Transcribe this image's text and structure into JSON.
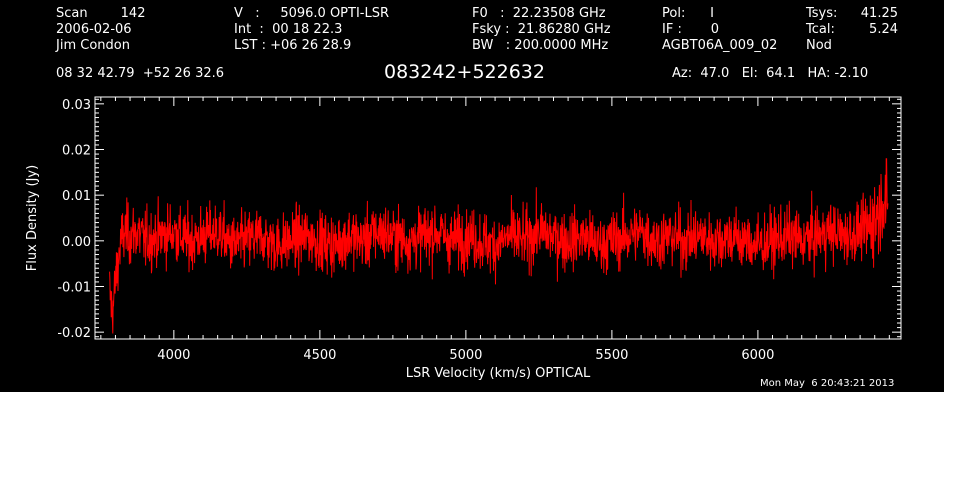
{
  "header": {
    "col1": [
      "Scan        142",
      "2006-02-06",
      "Jim Condon"
    ],
    "col2": [
      "V   :     5096.0 OPTI-LSR",
      "Int  :  00 18 22.3",
      "LST : +06 26 28.9"
    ],
    "col3": [
      "F0   :  22.23508 GHz",
      "Fsky :  21.86280 GHz",
      "BW   : 200.0000 MHz"
    ],
    "col4": [
      "Pol:      I",
      "IF :       0",
      "AGBT06A_009_02"
    ],
    "col5_labels": [
      "Tsys:",
      "Tcal:",
      "Nod"
    ],
    "col5_values": [
      "41.25",
      "5.24",
      ""
    ],
    "coords": "08 32 42.79  +52 26 32.6",
    "source": "083242+522632",
    "azelha": "Az:  47.0   El:  64.1   HA: -2.10"
  },
  "timestamp": "Mon May  6 20:43:21 2013",
  "colors": {
    "background": "#000000",
    "axes": "#ffffff",
    "series": "#ff0000"
  },
  "chart_data": {
    "type": "line",
    "title": "",
    "xlabel": "LSR Velocity (km/s) OPTICAL",
    "ylabel": "Flux Density (Jy)",
    "xlim": [
      3730,
      6490
    ],
    "ylim": [
      -0.0215,
      0.0315
    ],
    "xticks": [
      4000,
      4500,
      5000,
      5500,
      6000
    ],
    "xtick_labels": [
      "4000",
      "4500",
      "5000",
      "5500",
      "6000"
    ],
    "yticks": [
      -0.02,
      -0.01,
      0.0,
      0.01,
      0.02,
      0.03
    ],
    "ytick_labels": [
      "-0.02",
      "-0.01",
      "0.00",
      "0.01",
      "0.02",
      "0.03"
    ],
    "grid": false,
    "series": [
      {
        "name": "",
        "x": [
          3780,
          3790,
          3800,
          3810,
          3820,
          3835,
          3850,
          3875,
          3900,
          3950,
          4000,
          4050,
          4100,
          4150,
          4200,
          4250,
          4300,
          4350,
          4400,
          4450,
          4500,
          4550,
          4600,
          4650,
          4700,
          4750,
          4800,
          4850,
          4900,
          4950,
          5000,
          5050,
          5100,
          5150,
          5200,
          5250,
          5300,
          5350,
          5400,
          5450,
          5500,
          5550,
          5600,
          5650,
          5700,
          5750,
          5800,
          5850,
          5900,
          5950,
          6000,
          6050,
          6100,
          6150,
          6200,
          6250,
          6300,
          6350,
          6380,
          6400,
          6420,
          6430,
          6440,
          6445
        ],
        "y": [
          -0.011,
          -0.016,
          -0.009,
          -0.004,
          0.0,
          0.002,
          0.001,
          0.002,
          0.0,
          0.001,
          0.002,
          0.0,
          0.001,
          0.002,
          -0.001,
          0.0,
          0.001,
          -0.001,
          0.0,
          0.001,
          0.0,
          -0.001,
          0.001,
          0.0,
          0.002,
          0.001,
          0.0,
          0.001,
          0.002,
          0.0,
          0.001,
          0.0,
          -0.001,
          0.001,
          0.0,
          0.002,
          0.001,
          0.0,
          0.001,
          -0.001,
          0.0,
          0.001,
          0.002,
          0.0,
          0.001,
          0.0,
          0.001,
          0.0,
          0.001,
          0.0,
          -0.001,
          0.0,
          0.001,
          0.0,
          0.001,
          0.002,
          0.001,
          0.002,
          0.003,
          0.005,
          0.007,
          0.01,
          0.008,
          0.006
        ]
      }
    ]
  }
}
